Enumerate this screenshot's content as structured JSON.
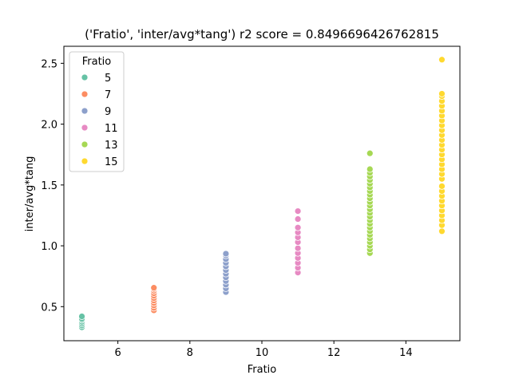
{
  "chart_data": {
    "type": "scatter",
    "title": "('Fratio', 'inter/avg*tang') r2 score = 0.8496696426762815",
    "xlabel": "Fratio",
    "ylabel": "inter/avg*tang",
    "xlim": [
      4.5,
      15.5
    ],
    "ylim": [
      0.22,
      2.64
    ],
    "xticks": [
      6,
      8,
      10,
      12,
      14
    ],
    "yticks": [
      0.5,
      1.0,
      1.5,
      2.0,
      2.5
    ],
    "xtick_labels": [
      "6",
      "8",
      "10",
      "12",
      "14"
    ],
    "ytick_labels": [
      "0.5",
      "1.0",
      "1.5",
      "2.0",
      "2.5"
    ],
    "legend": {
      "title": "Fratio",
      "placement": "upper-left"
    },
    "series": [
      {
        "name": "5",
        "color": "#66c2a5",
        "x": 5,
        "y": [
          0.33,
          0.345,
          0.36,
          0.375,
          0.39,
          0.4,
          0.42
        ]
      },
      {
        "name": "7",
        "color": "#fc8d62",
        "x": 7,
        "y": [
          0.47,
          0.49,
          0.51,
          0.53,
          0.55,
          0.57,
          0.59,
          0.61,
          0.63,
          0.645,
          0.655
        ]
      },
      {
        "name": "9",
        "color": "#8da0cb",
        "x": 9,
        "y": [
          0.62,
          0.65,
          0.68,
          0.71,
          0.74,
          0.77,
          0.8,
          0.83,
          0.86,
          0.89,
          0.92,
          0.935
        ]
      },
      {
        "name": "11",
        "color": "#e78ac3",
        "x": 11,
        "y": [
          0.78,
          0.82,
          0.86,
          0.9,
          0.94,
          0.98,
          1.03,
          1.07,
          1.11,
          1.15,
          1.22,
          1.285
        ]
      },
      {
        "name": "13",
        "color": "#a6d854",
        "x": 13,
        "y": [
          0.94,
          0.97,
          1.0,
          1.03,
          1.06,
          1.09,
          1.12,
          1.15,
          1.18,
          1.21,
          1.24,
          1.27,
          1.3,
          1.33,
          1.36,
          1.39,
          1.42,
          1.45,
          1.48,
          1.51,
          1.54,
          1.57,
          1.6,
          1.63,
          1.76
        ]
      },
      {
        "name": "15",
        "color": "#ffd92f",
        "x": 15,
        "y": [
          1.12,
          1.17,
          1.21,
          1.25,
          1.29,
          1.33,
          1.37,
          1.41,
          1.45,
          1.49,
          1.55,
          1.59,
          1.63,
          1.67,
          1.71,
          1.75,
          1.79,
          1.83,
          1.87,
          1.91,
          1.95,
          1.99,
          2.03,
          2.07,
          2.11,
          2.15,
          2.19,
          2.23,
          2.25,
          2.53
        ]
      }
    ]
  }
}
